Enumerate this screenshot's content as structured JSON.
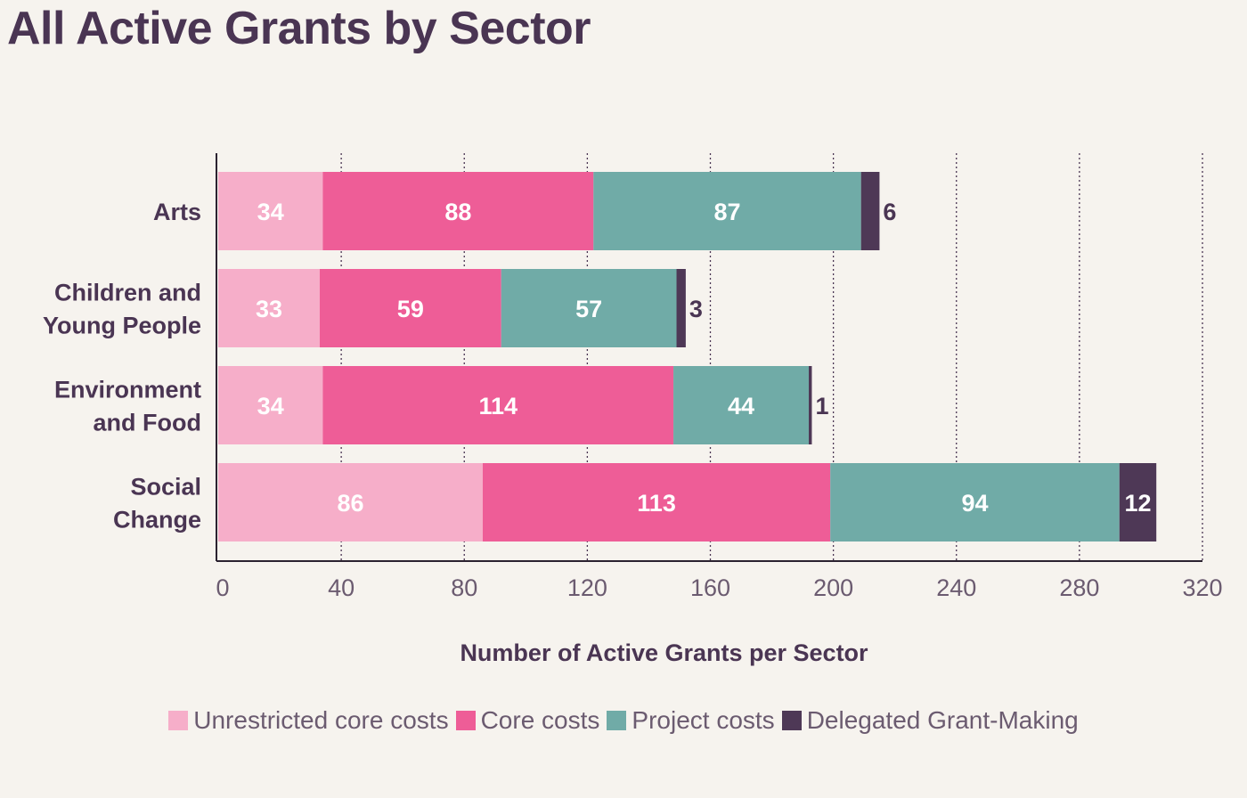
{
  "chart_data": {
    "type": "bar",
    "orientation": "horizontal",
    "stacked": true,
    "title": "All Active Grants by Sector",
    "xlabel": "Number of Active Grants per Sector",
    "ylabel": "",
    "xlim": [
      0,
      320
    ],
    "xticks": [
      0,
      40,
      80,
      120,
      160,
      200,
      240,
      280,
      320
    ],
    "grid": "vertical dotted",
    "legend_position": "bottom",
    "categories": [
      [
        "Arts"
      ],
      [
        "Children and",
        "Young People"
      ],
      [
        "Environment",
        "and Food"
      ],
      [
        "Social",
        "Change"
      ]
    ],
    "series": [
      {
        "name": "Unrestricted core costs",
        "color": "#f6aec9",
        "values": [
          34,
          33,
          34,
          86
        ]
      },
      {
        "name": "Core costs",
        "color": "#ee5d97",
        "values": [
          88,
          59,
          114,
          113
        ]
      },
      {
        "name": "Project costs",
        "color": "#70aba7",
        "values": [
          87,
          57,
          44,
          94
        ]
      },
      {
        "name": "Delegated Grant-Making",
        "color": "#4e3856",
        "values": [
          6,
          3,
          1,
          12
        ]
      }
    ]
  }
}
